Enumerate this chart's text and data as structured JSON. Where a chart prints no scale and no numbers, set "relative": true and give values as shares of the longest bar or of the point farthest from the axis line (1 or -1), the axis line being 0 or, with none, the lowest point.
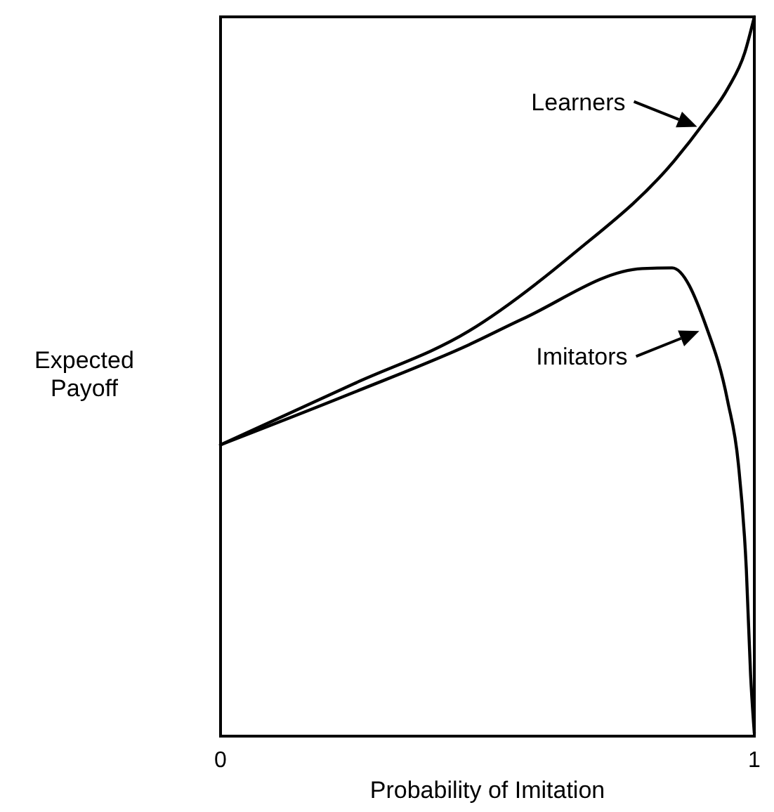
{
  "chart_data": {
    "type": "line",
    "relative": true,
    "xlabel": "Probability of Imitation",
    "ylabel": "Expected Payoff",
    "xlim": [
      0,
      1
    ],
    "xticks": [
      0,
      1
    ],
    "tick_labels": "x",
    "legend": "right",
    "series": [
      {
        "name": "Learners",
        "color": "#000000",
        "x": [
          0,
          0.25,
          0.465,
          0.66,
          0.85,
          0.906,
          0.95,
          0.982,
          1
        ],
        "values": [
          0.405,
          0.49,
          0.563,
          0.67,
          0.8,
          0.853,
          0.9,
          0.95,
          1
        ]
      },
      {
        "name": "Imitators",
        "color": "#000000",
        "x": [
          0,
          0.25,
          0.465,
          0.566,
          0.79,
          0.846,
          0.91,
          0.95,
          0.97,
          0.985,
          0.993,
          1
        ],
        "values": [
          0.405,
          0.478,
          0.544,
          0.58,
          0.65,
          0.651,
          0.569,
          0.466,
          0.379,
          0.232,
          0.085,
          0.004
        ]
      }
    ]
  }
}
